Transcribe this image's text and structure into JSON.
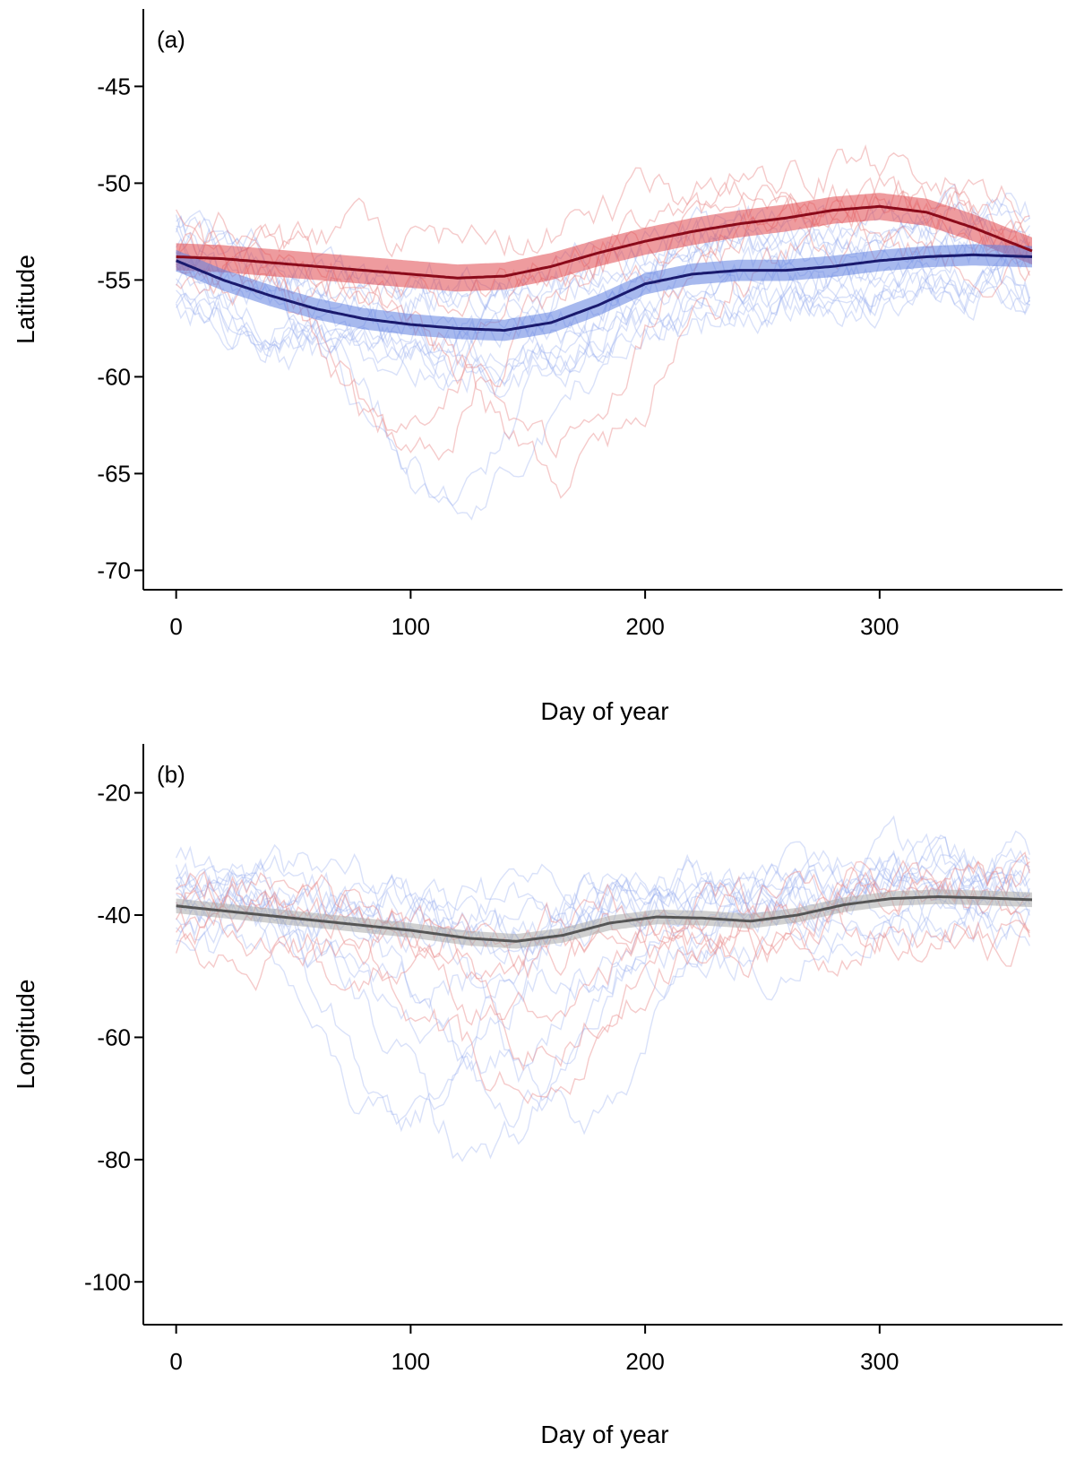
{
  "chart_data": [
    {
      "type": "line",
      "panel_label": "(a)",
      "xlabel": "Day of year",
      "ylabel": "Latitude",
      "xlim": [
        -14,
        378
      ],
      "ylim": [
        -71,
        -41
      ],
      "xticks": [
        0,
        100,
        200,
        300
      ],
      "yticks": [
        -45,
        -50,
        -55,
        -60,
        -65,
        -70
      ],
      "grid": false,
      "legend": "none",
      "series": [
        {
          "role": "red-smooth-fit",
          "color": "#8b0a1a",
          "band_color": "#e0484f",
          "band_halfwidth": 0.7,
          "x": [
            0,
            20,
            40,
            60,
            80,
            100,
            120,
            140,
            160,
            180,
            200,
            220,
            240,
            260,
            280,
            300,
            320,
            340,
            365
          ],
          "y": [
            -53.8,
            -53.9,
            -54.1,
            -54.3,
            -54.5,
            -54.7,
            -54.9,
            -54.8,
            -54.3,
            -53.6,
            -53.0,
            -52.5,
            -52.1,
            -51.8,
            -51.4,
            -51.2,
            -51.5,
            -52.3,
            -53.5
          ]
        },
        {
          "role": "blue-smooth-fit",
          "color": "#1a1a6e",
          "band_color": "#5f7fe0",
          "band_halfwidth": 0.55,
          "x": [
            0,
            20,
            40,
            60,
            80,
            100,
            120,
            140,
            160,
            180,
            200,
            220,
            240,
            260,
            280,
            300,
            320,
            340,
            365
          ],
          "y": [
            -54.0,
            -55.0,
            -55.8,
            -56.5,
            -57.0,
            -57.3,
            -57.5,
            -57.6,
            -57.2,
            -56.3,
            -55.2,
            -54.7,
            -54.5,
            -54.5,
            -54.3,
            -54.0,
            -53.8,
            -53.7,
            -53.8
          ]
        }
      ]
    },
    {
      "type": "line",
      "panel_label": "(b)",
      "xlabel": "Day of year",
      "ylabel": "Longitude",
      "xlim": [
        -14,
        378
      ],
      "ylim": [
        -107,
        -12
      ],
      "xticks": [
        0,
        100,
        200,
        300
      ],
      "yticks": [
        -20,
        -40,
        -60,
        -80,
        -100
      ],
      "grid": false,
      "legend": "none",
      "series": [
        {
          "role": "grey-smooth-fit",
          "color": "#555555",
          "band_color": "#aaaaaa",
          "band_halfwidth": 1.2,
          "x": [
            0,
            25,
            50,
            75,
            100,
            125,
            145,
            165,
            185,
            205,
            225,
            245,
            265,
            285,
            305,
            325,
            345,
            365
          ],
          "y": [
            -38.5,
            -39.5,
            -40.5,
            -41.5,
            -42.5,
            -43.8,
            -44.3,
            -43.3,
            -41.3,
            -40.3,
            -40.5,
            -41.0,
            -40.0,
            -38.3,
            -37.3,
            -37.0,
            -37.2,
            -37.5
          ]
        }
      ]
    }
  ],
  "colors": {
    "red_tracks": "#e88a8a",
    "blue_tracks": "#93a8ee"
  }
}
